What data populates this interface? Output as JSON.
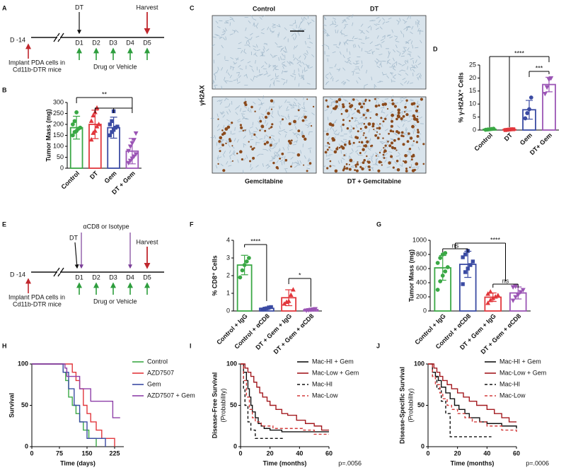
{
  "panels": [
    "A",
    "B",
    "C",
    "D",
    "E",
    "F",
    "G",
    "H",
    "I",
    "J"
  ],
  "timeline_a": {
    "start": "D -14",
    "days": [
      "D1",
      "D2",
      "D3",
      "D4",
      "D5"
    ],
    "dt": "DT",
    "harvest": "Harvest",
    "implant": [
      "Implant PDA cells in",
      "Cd11b-DTR mice"
    ],
    "treatment": "Drug or Vehicle"
  },
  "timeline_e": {
    "start": "D -14",
    "days": [
      "D1",
      "D2",
      "D3",
      "D4",
      "D5"
    ],
    "dt": "DT",
    "antibody": "αCD8 or Isotype",
    "harvest": "Harvest",
    "implant": [
      "Implant PDA cells in",
      "Cd11b-DTR mice"
    ],
    "treatment": "Drug or Vehicle"
  },
  "micrographs": {
    "columns_top": [
      "Control",
      "DT"
    ],
    "columns_bottom": [
      "Gemcitabine",
      "DT + Gemcitabine"
    ],
    "stain": "γH2AX"
  },
  "chart_data": [
    {
      "type": "bar",
      "ylabel": "Tumor Mass (mg)",
      "categories": [
        "Control",
        "DT",
        "Gem",
        "DT + Gem"
      ],
      "values": [
        185,
        200,
        185,
        78
      ],
      "errors": [
        52,
        65,
        48,
        58
      ],
      "colors": [
        "#3aa845",
        "#e2373c",
        "#3b4ba3",
        "#9b55b5"
      ],
      "markers": [
        "circle",
        "triangle",
        "square",
        "triangle-down"
      ],
      "points": [
        [
          150,
          165,
          170,
          180,
          185,
          200,
          215,
          255
        ],
        [
          130,
          160,
          170,
          190,
          200,
          215,
          240,
          255,
          275
        ],
        [
          150,
          165,
          175,
          185,
          190,
          200,
          215,
          260
        ],
        [
          25,
          35,
          45,
          55,
          65,
          80,
          100,
          115,
          130,
          160
        ]
      ],
      "ylim": [
        0,
        300
      ],
      "yticks": [
        0,
        50,
        100,
        150,
        200,
        250,
        300
      ],
      "annotations": [
        "**"
      ]
    },
    {
      "type": "bar",
      "ylabel": "% γ-H2AX⁺ Cells",
      "categories": [
        "Control",
        "DT",
        "Gem",
        "DT+ Gem"
      ],
      "values": [
        0.3,
        0.2,
        7.8,
        17.5
      ],
      "errors": [
        0.2,
        0.1,
        3.6,
        2.8
      ],
      "colors": [
        "#3aa845",
        "#e2373c",
        "#3b4ba3",
        "#9b55b5"
      ],
      "markers": [
        "circle",
        "square",
        "circle",
        "triangle-down"
      ],
      "points": [
        [
          0.1,
          0.2,
          0.3,
          0.4,
          0.5
        ],
        [
          0.0,
          0.1,
          0.2,
          0.3,
          0.3
        ],
        [
          4.5,
          6.5,
          8,
          12.5
        ],
        [
          14,
          16.5,
          19.5,
          20
        ]
      ],
      "ylim": [
        0,
        25
      ],
      "yticks": [
        0,
        5,
        10,
        15,
        20,
        25
      ],
      "annotations": [
        "****",
        "***"
      ]
    },
    {
      "type": "bar",
      "ylabel": "% CD8⁺ Cells",
      "categories": [
        "Control + IgG",
        "Control + αCD8",
        "DT + Gem + IgG",
        "DT + Gem + αCD8"
      ],
      "values": [
        2.6,
        0.15,
        0.75,
        0.08
      ],
      "errors": [
        0.55,
        0.06,
        0.45,
        0.03
      ],
      "colors": [
        "#3aa845",
        "#3b4ba3",
        "#e2373c",
        "#9b55b5"
      ],
      "markers": [
        "circle",
        "square",
        "triangle",
        "triangle-down"
      ],
      "points": [
        [
          1.9,
          2.3,
          2.6,
          2.8,
          3.0
        ],
        [
          0.08,
          0.12,
          0.15,
          0.2,
          0.22
        ],
        [
          0.4,
          0.5,
          0.55,
          0.9,
          1.2
        ],
        [
          0.04,
          0.06,
          0.08,
          0.1,
          0.12
        ]
      ],
      "ylim": [
        0,
        4
      ],
      "yticks": [
        0,
        1,
        2,
        3,
        4
      ],
      "annotations": [
        "****",
        "*"
      ]
    },
    {
      "type": "bar",
      "ylabel": "Tumor Mass (mg)",
      "categories": [
        "Control + IgG",
        "Control + αCD8",
        "DT + Gem + IgG",
        "DT + Gem + αCD8"
      ],
      "values": [
        610,
        660,
        195,
        255
      ],
      "errors": [
        175,
        185,
        60,
        85
      ],
      "colors": [
        "#3aa845",
        "#3b4ba3",
        "#e2373c",
        "#9b55b5"
      ],
      "markers": [
        "circle",
        "square",
        "triangle",
        "triangle-down"
      ],
      "points": [
        [
          300,
          420,
          500,
          560,
          620,
          680,
          750,
          800,
          820
        ],
        [
          380,
          550,
          600,
          650,
          700,
          760,
          800,
          850
        ],
        [
          110,
          150,
          180,
          200,
          220,
          240,
          270
        ],
        [
          150,
          200,
          230,
          270,
          300,
          340,
          350
        ]
      ],
      "ylim": [
        0,
        1000
      ],
      "yticks": [
        0,
        200,
        400,
        600,
        800,
        1000
      ],
      "annotations": [
        "ns",
        "ns",
        "****"
      ]
    },
    {
      "type": "line",
      "step": true,
      "ylabel": "Survival",
      "xlabel": "Time (days)",
      "legend": "outside right",
      "xlim": [
        0,
        250
      ],
      "xticks": [
        0,
        75,
        150,
        225
      ],
      "ylim": [
        0,
        100
      ],
      "yticks": [
        0,
        50,
        100
      ],
      "series": [
        {
          "name": "Control",
          "color": "#3aa845",
          "dashed": false,
          "x": [
            0,
            85,
            92,
            100,
            110,
            120,
            130,
            140,
            155,
            175
          ],
          "values": [
            100,
            90,
            80,
            60,
            50,
            40,
            30,
            20,
            10,
            0
          ]
        },
        {
          "name": "AZD7507",
          "color": "#e2373c",
          "dashed": false,
          "x": [
            0,
            110,
            120,
            130,
            140,
            150,
            160,
            175,
            190,
            225
          ],
          "values": [
            100,
            90,
            80,
            70,
            50,
            40,
            30,
            20,
            10,
            0
          ]
        },
        {
          "name": "Gem",
          "color": "#3b4ba3",
          "dashed": false,
          "x": [
            0,
            85,
            100,
            115,
            130,
            150,
            200
          ],
          "values": [
            100,
            90,
            70,
            50,
            30,
            10,
            0
          ]
        },
        {
          "name": "AZD7507 + Gem",
          "color": "#8e3fa8",
          "dashed": false,
          "x": [
            0,
            90,
            95,
            130,
            160,
            220,
            240
          ],
          "values": [
            100,
            95,
            85,
            70,
            55,
            35,
            35
          ]
        }
      ]
    },
    {
      "type": "line",
      "step": true,
      "ylabel": [
        "Disease-Free Survival",
        "(Probability)"
      ],
      "xlabel": "Time (months)",
      "legend": "upper right",
      "annotation": "p=.0056",
      "xlim": [
        0,
        60
      ],
      "xticks": [
        0,
        20,
        40,
        60
      ],
      "ylim": [
        0,
        100
      ],
      "yticks": [
        0,
        50,
        100
      ],
      "series": [
        {
          "name": "Mac-HI + Gem",
          "color": "#111111",
          "dashed": false,
          "x": [
            0,
            2,
            4,
            5,
            6,
            7,
            8,
            10,
            12,
            14,
            16,
            20,
            28,
            60
          ],
          "values": [
            100,
            90,
            80,
            70,
            60,
            50,
            42,
            35,
            28,
            25,
            22,
            20,
            18,
            18
          ]
        },
        {
          "name": "Mac-Low + Gem",
          "color": "#a3191f",
          "dashed": false,
          "x": [
            0,
            3,
            5,
            7,
            9,
            11,
            13,
            15,
            18,
            20,
            24,
            28,
            32,
            38,
            44,
            50,
            55,
            60
          ],
          "values": [
            100,
            95,
            90,
            85,
            78,
            72,
            65,
            60,
            55,
            50,
            45,
            40,
            38,
            32,
            28,
            25,
            20,
            20
          ]
        },
        {
          "name": "Mac-HI",
          "color": "#111111",
          "dashed": true,
          "x": [
            0,
            2,
            3,
            5,
            7,
            10,
            30
          ],
          "values": [
            100,
            70,
            50,
            30,
            20,
            10,
            10
          ]
        },
        {
          "name": "Mac-Low",
          "color": "#d33a3a",
          "dashed": true,
          "x": [
            0,
            2,
            4,
            6,
            8,
            10,
            14,
            22,
            42,
            50,
            60
          ],
          "values": [
            100,
            80,
            60,
            45,
            35,
            30,
            25,
            22,
            20,
            15,
            15
          ]
        }
      ]
    },
    {
      "type": "line",
      "step": true,
      "ylabel": [
        "Disease-Specific Survival",
        "(Probability)"
      ],
      "xlabel": "Time (months)",
      "legend": "upper right",
      "annotation": "p=.0006",
      "xlim": [
        0,
        60
      ],
      "xticks": [
        0,
        20,
        40,
        60
      ],
      "ylim": [
        0,
        100
      ],
      "yticks": [
        0,
        50,
        100
      ],
      "series": [
        {
          "name": "Mac-HI + Gem",
          "color": "#111111",
          "dashed": false,
          "x": [
            0,
            3,
            5,
            7,
            9,
            12,
            15,
            18,
            21,
            25,
            28,
            35,
            40,
            50,
            60
          ],
          "values": [
            100,
            90,
            85,
            80,
            72,
            65,
            58,
            50,
            45,
            40,
            35,
            30,
            28,
            25,
            22
          ]
        },
        {
          "name": "Mac-Low + Gem",
          "color": "#a3191f",
          "dashed": false,
          "x": [
            0,
            4,
            6,
            8,
            10,
            13,
            16,
            20,
            24,
            28,
            33,
            40,
            45,
            50,
            55,
            60
          ],
          "values": [
            100,
            95,
            90,
            85,
            80,
            75,
            70,
            65,
            60,
            55,
            50,
            45,
            40,
            35,
            30,
            30
          ]
        },
        {
          "name": "Mac-HI",
          "color": "#111111",
          "dashed": true,
          "x": [
            0,
            3,
            6,
            9,
            12,
            15,
            43
          ],
          "values": [
            100,
            85,
            70,
            55,
            40,
            12,
            12
          ]
        },
        {
          "name": "Mac-Low",
          "color": "#d33a3a",
          "dashed": true,
          "x": [
            0,
            3,
            5,
            8,
            10,
            13,
            16,
            20,
            25,
            30,
            40,
            50,
            60
          ],
          "values": [
            100,
            85,
            75,
            65,
            58,
            50,
            45,
            40,
            35,
            30,
            25,
            20,
            18
          ]
        }
      ]
    }
  ]
}
